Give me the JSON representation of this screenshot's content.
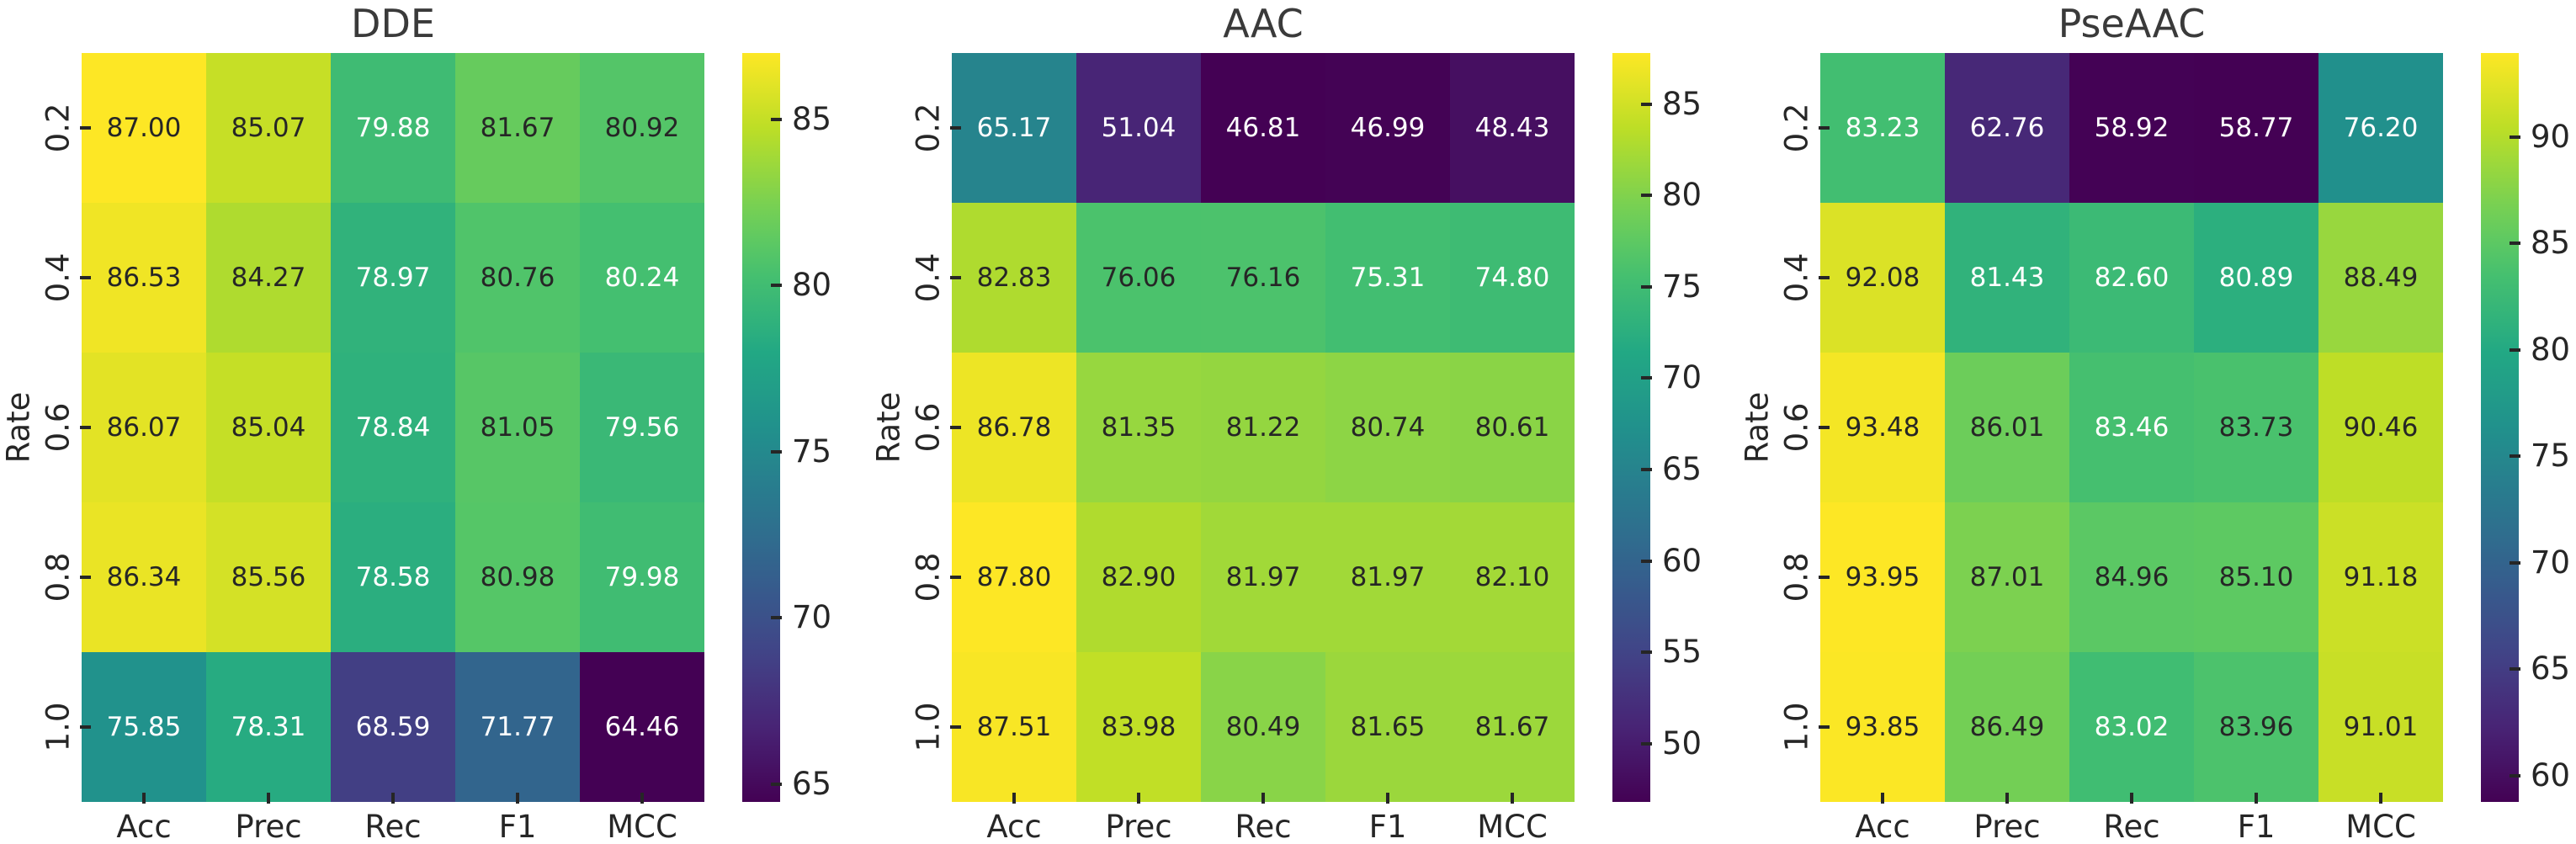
{
  "figure": {
    "background": "#ffffff",
    "text_color": "#262626",
    "annotation_dark_color": "#262626",
    "annotation_light_color": "#ffffff",
    "colormap": "viridis"
  },
  "chart_data": [
    {
      "type": "heatmap",
      "title": "DDE",
      "xlabel": "",
      "ylabel": "Rate",
      "columns": [
        "Acc",
        "Prec",
        "Rec",
        "F1",
        "MCC"
      ],
      "rows": [
        "0.2",
        "0.4",
        "0.6",
        "0.8",
        "1.0"
      ],
      "values": [
        [
          87.0,
          85.07,
          79.88,
          81.67,
          80.92
        ],
        [
          86.53,
          84.27,
          78.97,
          80.76,
          80.24
        ],
        [
          86.07,
          85.04,
          78.84,
          81.05,
          79.56
        ],
        [
          86.34,
          85.56,
          78.58,
          80.98,
          79.98
        ],
        [
          75.85,
          78.31,
          68.59,
          71.77,
          64.46
        ]
      ],
      "colorbar_ticks": [
        85,
        80,
        75,
        70,
        65
      ],
      "legend_position": "right"
    },
    {
      "type": "heatmap",
      "title": "AAC",
      "xlabel": "",
      "ylabel": "Rate",
      "columns": [
        "Acc",
        "Prec",
        "Rec",
        "F1",
        "MCC"
      ],
      "rows": [
        "0.2",
        "0.4",
        "0.6",
        "0.8",
        "1.0"
      ],
      "values": [
        [
          65.17,
          51.04,
          46.81,
          46.99,
          48.43
        ],
        [
          82.83,
          76.06,
          76.16,
          75.31,
          74.8
        ],
        [
          86.78,
          81.35,
          81.22,
          80.74,
          80.61
        ],
        [
          87.8,
          82.9,
          81.97,
          81.97,
          82.1
        ],
        [
          87.51,
          83.98,
          80.49,
          81.65,
          81.67
        ]
      ],
      "colorbar_ticks": [
        85,
        80,
        75,
        70,
        65,
        60,
        55,
        50
      ],
      "legend_position": "right"
    },
    {
      "type": "heatmap",
      "title": "PseAAC",
      "xlabel": "",
      "ylabel": "Rate",
      "columns": [
        "Acc",
        "Prec",
        "Rec",
        "F1",
        "MCC"
      ],
      "rows": [
        "0.2",
        "0.4",
        "0.6",
        "0.8",
        "1.0"
      ],
      "values": [
        [
          83.23,
          62.76,
          58.92,
          58.77,
          76.2
        ],
        [
          92.08,
          81.43,
          82.6,
          80.89,
          88.49
        ],
        [
          93.48,
          86.01,
          83.46,
          83.73,
          90.46
        ],
        [
          93.95,
          87.01,
          84.96,
          85.1,
          91.18
        ],
        [
          93.85,
          86.49,
          83.02,
          83.96,
          91.01
        ]
      ],
      "colorbar_ticks": [
        90,
        85,
        80,
        75,
        70,
        65,
        60
      ],
      "legend_position": "right"
    }
  ]
}
